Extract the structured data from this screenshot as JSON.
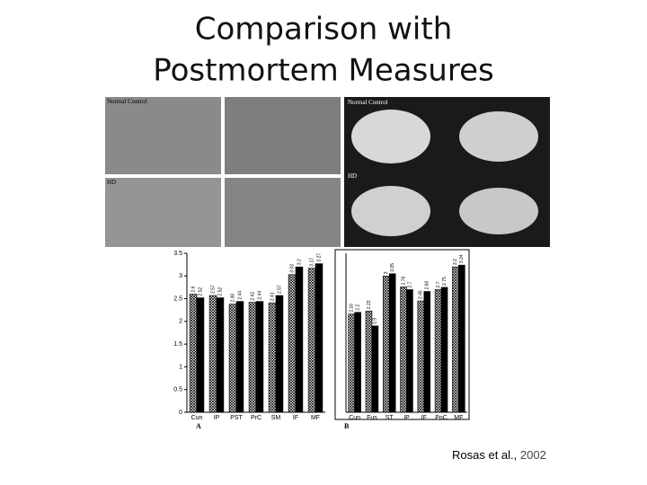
{
  "title": "Comparison with Postmortem Measures",
  "citation": {
    "author": "Rosas et al.,",
    "year": "2002"
  },
  "photo_labels": [
    "Normal Control",
    "HD",
    "Normal Control",
    "HD"
  ],
  "chart_data": [
    {
      "type": "bar",
      "panel": "A",
      "categories": [
        "Cun",
        "IP",
        "PST",
        "PrC",
        "SM",
        "IF",
        "MF"
      ],
      "series": [
        {
          "color": "#000000",
          "pattern": "crosshatch",
          "values": [
            2.6,
            2.57,
            2.38,
            2.42,
            2.41,
            3.03,
            3.17
          ]
        },
        {
          "color": "#000000",
          "values": [
            2.52,
            2.52,
            2.44,
            2.44,
            2.57,
            3.2,
            3.27
          ]
        }
      ],
      "ylim": [
        0,
        3.5
      ],
      "yticks": [
        0,
        0.5,
        1,
        1.5,
        2,
        2.5,
        3,
        3.5
      ]
    },
    {
      "type": "bar",
      "panel": "B",
      "categories": [
        "Cun",
        "Fus",
        "ST",
        "IP",
        "IF",
        "PoC",
        "MF"
      ],
      "series": [
        {
          "color": "#000000",
          "pattern": "crosshatch",
          "values": [
            2.16,
            2.23,
            3.0,
            2.76,
            2.45,
            2.7,
            3.2
          ]
        },
        {
          "color": "#000000",
          "values": [
            2.2,
            1.9,
            3.05,
            2.7,
            2.66,
            2.75,
            3.24
          ]
        }
      ],
      "ylim": [
        0,
        3.5
      ]
    }
  ]
}
